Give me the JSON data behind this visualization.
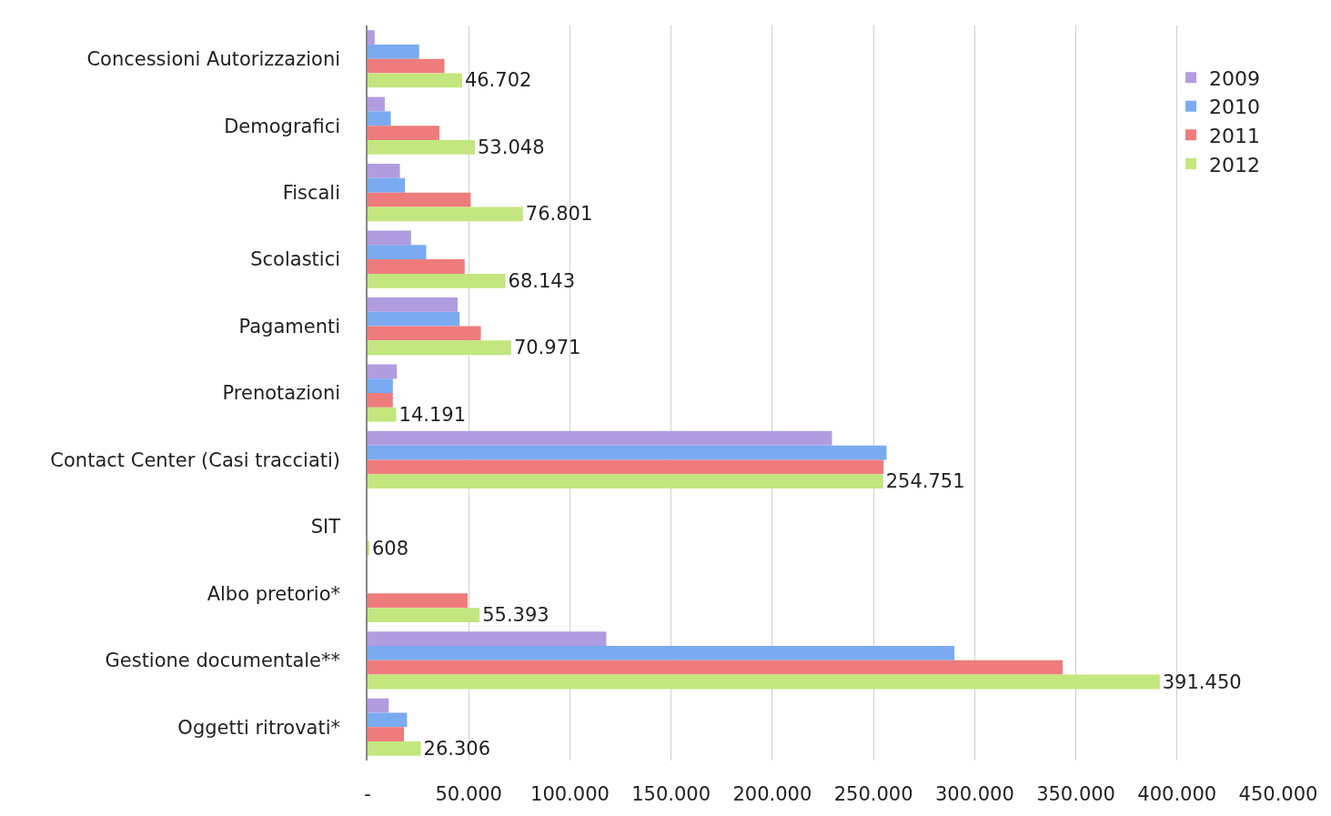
{
  "chart_data": {
    "type": "bar",
    "orientation": "horizontal",
    "categories": [
      "Concessioni Autorizzazioni",
      "Demografici",
      "Fiscali",
      "Scolastici",
      "Pagamenti",
      "Prenotazioni",
      "Contact Center (Casi tracciati)",
      "SIT",
      "Albo pretorio*",
      "Gestione documentale**",
      "Oggetti ritrovati*"
    ],
    "series": [
      {
        "name": "2009",
        "color": "#b09ce0",
        "values": [
          3500,
          8500,
          16000,
          21500,
          44500,
          14500,
          229500,
          null,
          null,
          118000,
          10500
        ]
      },
      {
        "name": "2010",
        "color": "#7aaaf0",
        "values": [
          25500,
          11500,
          18500,
          29000,
          45500,
          12500,
          256500,
          null,
          null,
          290000,
          19500
        ]
      },
      {
        "name": "2011",
        "color": "#ee7c7c",
        "values": [
          38000,
          35500,
          51000,
          48000,
          56000,
          12500,
          255000,
          null,
          49500,
          343500,
          18000
        ]
      },
      {
        "name": "2012",
        "color": "#c3e67e",
        "values": [
          46702,
          53048,
          76801,
          68143,
          70971,
          14191,
          254751,
          608,
          55393,
          391450,
          26306
        ],
        "value_labels": [
          "46.702",
          "53.048",
          "76.801",
          "68.143",
          "70.971",
          "14.191",
          "254.751",
          "608",
          "55.393",
          "391.450",
          "26.306"
        ]
      }
    ],
    "xlim": [
      0,
      450000
    ],
    "xticks": [
      {
        "value": 0,
        "label": "-"
      },
      {
        "value": 50000,
        "label": "50.000"
      },
      {
        "value": 100000,
        "label": "100.000"
      },
      {
        "value": 150000,
        "label": "150.000"
      },
      {
        "value": 200000,
        "label": "200.000"
      },
      {
        "value": 250000,
        "label": "250.000"
      },
      {
        "value": 300000,
        "label": "300.000"
      },
      {
        "value": 350000,
        "label": "350.000"
      },
      {
        "value": 400000,
        "label": "400.000"
      },
      {
        "value": 450000,
        "label": "450.000"
      }
    ],
    "grid": "x",
    "legend": "top right"
  }
}
